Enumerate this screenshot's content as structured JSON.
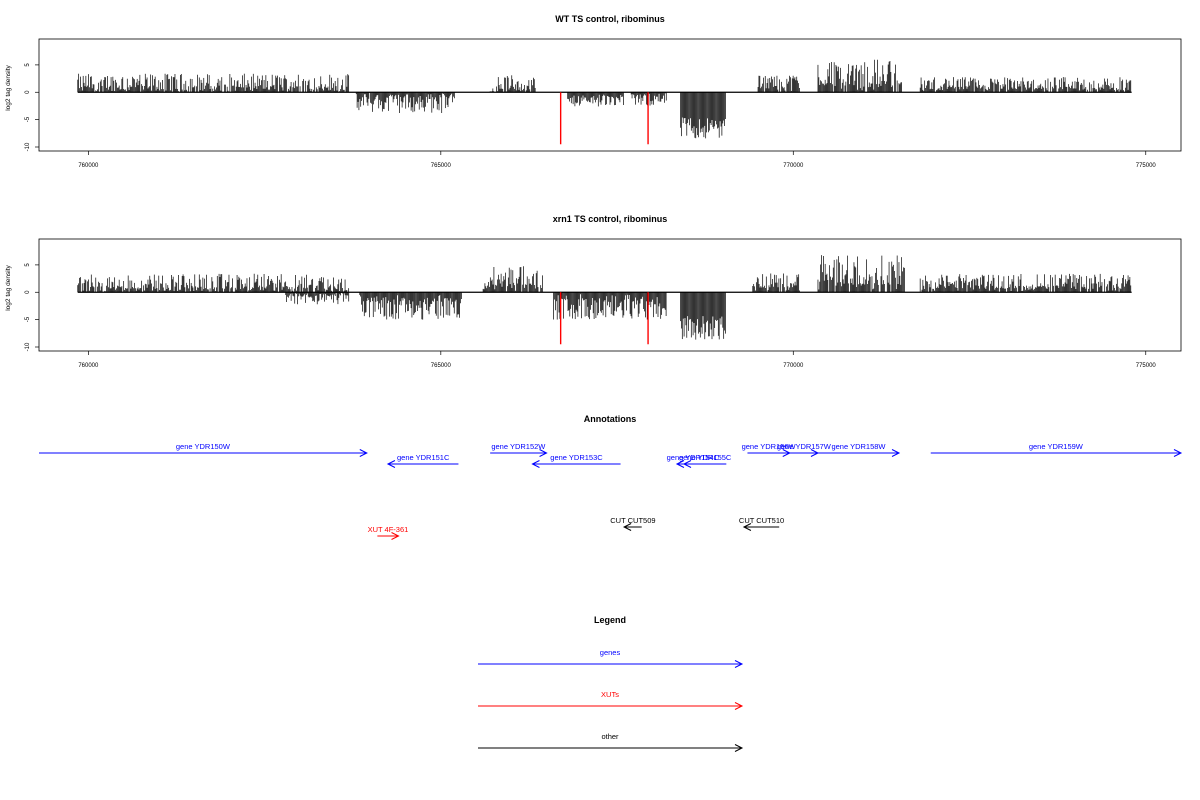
{
  "colors": {
    "genes": "#0000ff",
    "xuts": "#ff0000",
    "other": "#000000",
    "signal": "#000000",
    "marker": "#ff0000"
  },
  "chart_data": [
    {
      "type": "bar",
      "title": "WT TS control, ribominus",
      "ylabel": "log2 tag density",
      "xlim": [
        759300,
        775500
      ],
      "ylim": [
        -10,
        9
      ],
      "x_ticks": [
        "760000",
        "765000",
        "770000",
        "775000"
      ],
      "y_ticks": [
        "-10",
        "-5",
        "0",
        "5"
      ],
      "marker_lines_x": [
        766700,
        767940
      ],
      "marker_depth": -9.5,
      "segments": [
        {
          "start": 759850,
          "end": 763700,
          "mean": 1.8,
          "amp": 1.6
        },
        {
          "start": 763800,
          "end": 765200,
          "mean": -2.0,
          "amp": 1.8
        },
        {
          "start": 765700,
          "end": 766350,
          "mean": 1.6,
          "amp": 1.6
        },
        {
          "start": 766800,
          "end": 767600,
          "mean": -1.6,
          "amp": 1.0
        },
        {
          "start": 767700,
          "end": 768200,
          "mean": -1.5,
          "amp": 1.0
        },
        {
          "start": 768400,
          "end": 769050,
          "mean": -6.5,
          "amp": 2.0
        },
        {
          "start": 769500,
          "end": 770100,
          "mean": 2.0,
          "amp": 1.3
        },
        {
          "start": 770350,
          "end": 771550,
          "mean": 3.6,
          "amp": 2.6
        },
        {
          "start": 771800,
          "end": 774800,
          "mean": 1.6,
          "amp": 1.2
        }
      ]
    },
    {
      "type": "bar",
      "title": "xrn1 TS control, ribominus",
      "ylabel": "log2 tag density",
      "xlim": [
        759300,
        775500
      ],
      "ylim": [
        -10,
        9
      ],
      "x_ticks": [
        "760000",
        "765000",
        "770000",
        "775000"
      ],
      "y_ticks": [
        "-10",
        "-5",
        "0",
        "5"
      ],
      "marker_lines_x": [
        766700,
        767940
      ],
      "marker_depth": -9.5,
      "segments": [
        {
          "start": 759850,
          "end": 763700,
          "mean": 1.8,
          "amp": 1.6
        },
        {
          "start": 762800,
          "end": 763700,
          "mean": -1.2,
          "amp": 1.0
        },
        {
          "start": 763850,
          "end": 765300,
          "mean": -3.0,
          "amp": 2.0
        },
        {
          "start": 765600,
          "end": 766450,
          "mean": 2.6,
          "amp": 2.2
        },
        {
          "start": 766600,
          "end": 768200,
          "mean": -3.0,
          "amp": 2.0
        },
        {
          "start": 768400,
          "end": 769050,
          "mean": -6.5,
          "amp": 2.2
        },
        {
          "start": 769400,
          "end": 770100,
          "mean": 2.2,
          "amp": 1.4
        },
        {
          "start": 770350,
          "end": 771600,
          "mean": 4.0,
          "amp": 2.8
        },
        {
          "start": 771800,
          "end": 774800,
          "mean": 2.0,
          "amp": 1.4
        }
      ]
    }
  ],
  "annotations": {
    "title": "Annotations",
    "features": [
      {
        "label": "gene YDR150W",
        "color": "#0000ff",
        "start": 759300,
        "end": 763950,
        "dir": "+",
        "row": 0
      },
      {
        "label": "gene YDR151C",
        "color": "#0000ff",
        "start": 764250,
        "end": 765250,
        "dir": "-",
        "row": 1
      },
      {
        "label": "gene YDR152W",
        "color": "#0000ff",
        "start": 765700,
        "end": 766500,
        "dir": "+",
        "row": 0
      },
      {
        "label": "gene YDR153C",
        "color": "#0000ff",
        "start": 766300,
        "end": 767550,
        "dir": "-",
        "row": 1
      },
      {
        "label": "gene YDR154C",
        "color": "#0000ff",
        "start": 768350,
        "end": 768800,
        "dir": "-",
        "row": 1
      },
      {
        "label": "gene YDR155C",
        "color": "#0000ff",
        "start": 768450,
        "end": 769050,
        "dir": "-",
        "row": 1
      },
      {
        "label": "gene YDR156W",
        "color": "#0000ff",
        "start": 769350,
        "end": 769950,
        "dir": "+",
        "row": 0
      },
      {
        "label": "gene YDR157W",
        "color": "#0000ff",
        "start": 769950,
        "end": 770350,
        "dir": "+",
        "row": 0
      },
      {
        "label": "gene YDR158W",
        "color": "#0000ff",
        "start": 770350,
        "end": 771500,
        "dir": "+",
        "row": 0
      },
      {
        "label": "gene YDR159W",
        "color": "#0000ff",
        "start": 771950,
        "end": 775500,
        "dir": "+",
        "row": 0
      },
      {
        "label": "CUT CUT509",
        "color": "#000000",
        "start": 767600,
        "end": 767850,
        "dir": "-",
        "row": 2
      },
      {
        "label": "CUT CUT510",
        "color": "#000000",
        "start": 769300,
        "end": 769800,
        "dir": "-",
        "row": 2
      },
      {
        "label": "XUT 4F-361",
        "color": "#ff0000",
        "start": 764100,
        "end": 764400,
        "dir": "+",
        "row": 3
      }
    ]
  },
  "legend": {
    "title": "Legend",
    "items": [
      {
        "label": "genes",
        "color": "#0000ff"
      },
      {
        "label": "XUTs",
        "color": "#ff0000"
      },
      {
        "label": "other",
        "color": "#000000"
      }
    ]
  }
}
